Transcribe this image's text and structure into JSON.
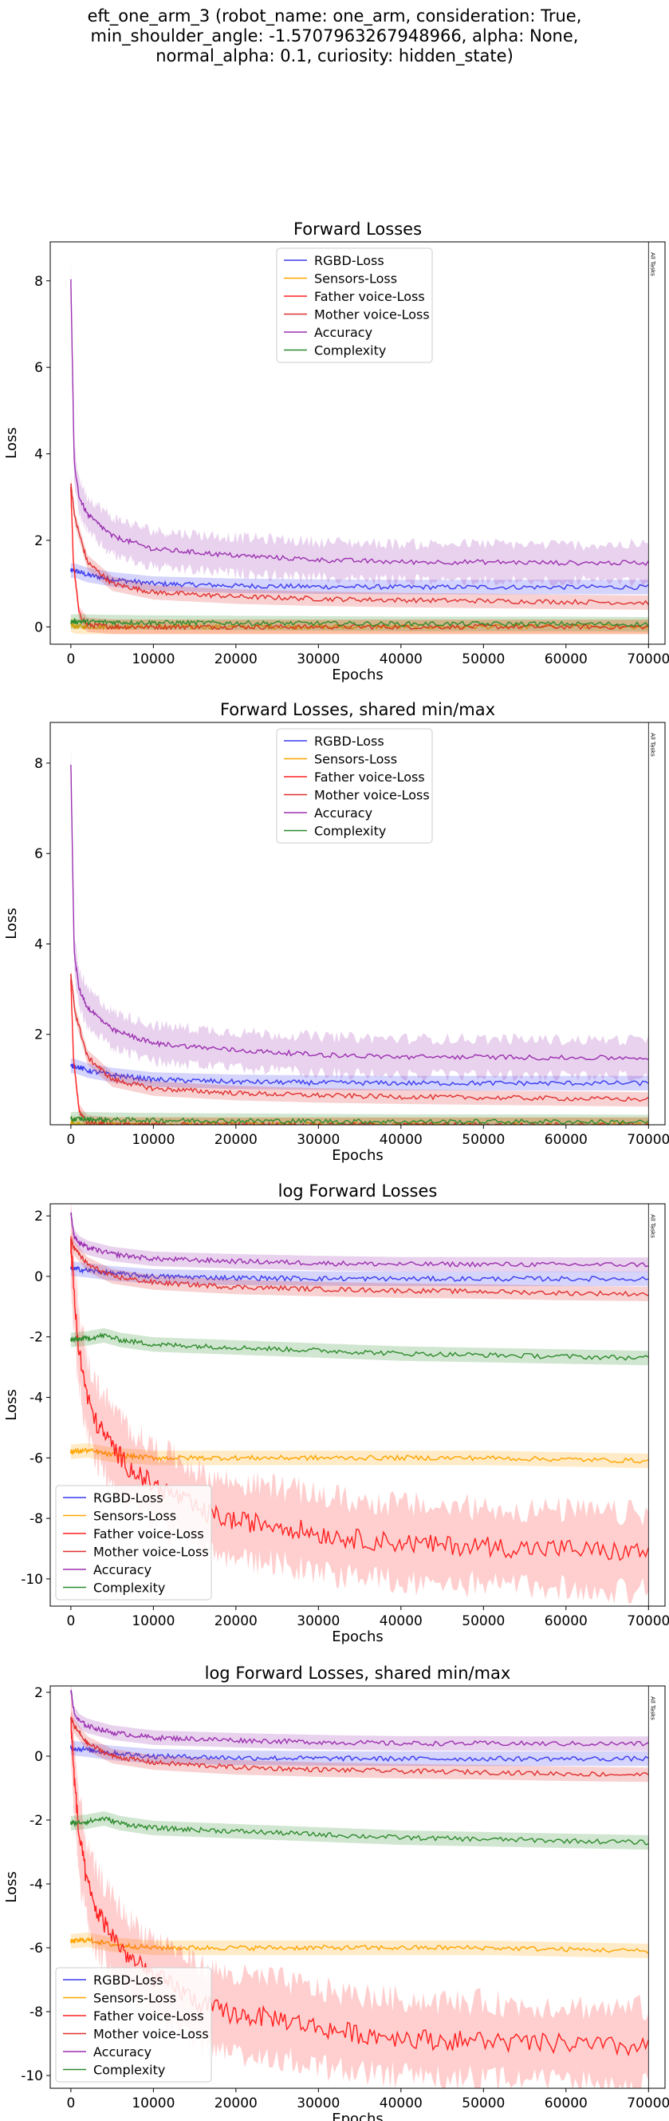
{
  "suptitle": {
    "lines": [
      "eft_one_arm_3 (robot_name: one_arm, consideration: True,",
      "min_shoulder_angle: -1.5707963267948966, alpha: None,",
      "normal_alpha: 0.1, curiosity: hidden_state)"
    ]
  },
  "colors": {
    "rgbd": "#3b3bf0",
    "sensors": "#ffa500",
    "father": "#ff2020",
    "mother": "#e03030",
    "accuracy": "#9b30b0",
    "complexity": "#2e8b2e"
  },
  "chart_data": [
    {
      "type": "line",
      "title": "Forward Losses",
      "xlabel": "Epochs",
      "ylabel": "Loss",
      "xlim": [
        -2500,
        72000
      ],
      "ylim": [
        -0.4,
        8.9
      ],
      "xticks": [
        0,
        10000,
        20000,
        30000,
        40000,
        50000,
        60000,
        70000
      ],
      "yticks": [
        0,
        2,
        4,
        6,
        8
      ],
      "annotation": "All Tasks",
      "annotation_x": 70000,
      "grid": false,
      "legend_placement": "upper-center",
      "series": [
        {
          "name": "RGBD-Loss",
          "color": "#3b3bf0",
          "x": [
            0,
            500,
            2000,
            5000,
            10000,
            20000,
            30000,
            40000,
            50000,
            60000,
            70000
          ],
          "values": [
            1.3,
            1.3,
            1.2,
            1.1,
            1.0,
            0.95,
            0.93,
            0.92,
            0.92,
            0.92,
            0.92
          ]
        },
        {
          "name": "Sensors-Loss",
          "color": "#ffa500",
          "x": [
            0,
            500,
            1000,
            2000,
            5000,
            10000,
            20000,
            30000,
            40000,
            50000,
            60000,
            70000
          ],
          "values": [
            0.05,
            0.01,
            0.005,
            0.003,
            0.003,
            0.003,
            0.003,
            0.003,
            0.003,
            0.003,
            0.003,
            0.003
          ]
        },
        {
          "name": "Father voice-Loss",
          "color": "#ff2020",
          "x": [
            0,
            300,
            1000,
            2000,
            5000,
            10000,
            20000,
            30000,
            40000,
            50000,
            60000,
            70000
          ],
          "values": [
            3.2,
            1.5,
            0.3,
            0.05,
            0.005,
            0.002,
            0.001,
            0.001,
            0.001,
            0.001,
            0.001,
            0.001
          ]
        },
        {
          "name": "Mother voice-Loss",
          "color": "#e03030",
          "x": [
            0,
            500,
            2000,
            5000,
            10000,
            20000,
            30000,
            40000,
            50000,
            60000,
            70000
          ],
          "values": [
            3.3,
            2.5,
            1.5,
            1.0,
            0.8,
            0.7,
            0.65,
            0.62,
            0.6,
            0.58,
            0.56
          ]
        },
        {
          "name": "Accuracy",
          "color": "#9b30b0",
          "x": [
            0,
            400,
            1000,
            2000,
            5000,
            10000,
            20000,
            30000,
            40000,
            50000,
            60000,
            70000
          ],
          "values": [
            8.0,
            3.8,
            3.0,
            2.6,
            2.1,
            1.8,
            1.65,
            1.55,
            1.5,
            1.5,
            1.48,
            1.48
          ]
        },
        {
          "name": "Complexity",
          "color": "#2e8b2e",
          "x": [
            0,
            1000,
            2000,
            5000,
            10000,
            20000,
            30000,
            40000,
            50000,
            60000,
            70000
          ],
          "values": [
            0.12,
            0.13,
            0.12,
            0.11,
            0.1,
            0.09,
            0.08,
            0.07,
            0.07,
            0.07,
            0.06
          ]
        }
      ]
    },
    {
      "type": "line",
      "title": "Forward Losses, shared min/max",
      "xlabel": "Epochs",
      "ylabel": "Loss",
      "xlim": [
        -2500,
        72000
      ],
      "ylim": [
        0.0,
        8.9
      ],
      "xticks": [
        0,
        10000,
        20000,
        30000,
        40000,
        50000,
        60000,
        70000
      ],
      "yticks": [
        2,
        4,
        6,
        8
      ],
      "annotation": "All Tasks",
      "annotation_x": 70000,
      "grid": false,
      "legend_placement": "upper-center",
      "series": [
        {
          "name": "RGBD-Loss",
          "color": "#3b3bf0",
          "x": [
            0,
            500,
            2000,
            5000,
            10000,
            20000,
            30000,
            40000,
            50000,
            60000,
            70000
          ],
          "values": [
            1.3,
            1.3,
            1.2,
            1.1,
            1.0,
            0.95,
            0.93,
            0.92,
            0.92,
            0.92,
            0.92
          ]
        },
        {
          "name": "Sensors-Loss",
          "color": "#ffa500",
          "x": [
            0,
            500,
            1000,
            2000,
            5000,
            10000,
            20000,
            30000,
            40000,
            50000,
            60000,
            70000
          ],
          "values": [
            0.05,
            0.01,
            0.005,
            0.003,
            0.003,
            0.003,
            0.003,
            0.003,
            0.003,
            0.003,
            0.003,
            0.003
          ]
        },
        {
          "name": "Father voice-Loss",
          "color": "#ff2020",
          "x": [
            0,
            300,
            1000,
            2000,
            5000,
            10000,
            20000,
            30000,
            40000,
            50000,
            60000,
            70000
          ],
          "values": [
            3.2,
            1.5,
            0.3,
            0.05,
            0.005,
            0.002,
            0.001,
            0.001,
            0.001,
            0.001,
            0.001,
            0.001
          ]
        },
        {
          "name": "Mother voice-Loss",
          "color": "#e03030",
          "x": [
            0,
            500,
            2000,
            5000,
            10000,
            20000,
            30000,
            40000,
            50000,
            60000,
            70000
          ],
          "values": [
            3.3,
            2.5,
            1.5,
            1.0,
            0.8,
            0.7,
            0.65,
            0.62,
            0.6,
            0.58,
            0.56
          ]
        },
        {
          "name": "Accuracy",
          "color": "#9b30b0",
          "x": [
            0,
            400,
            1000,
            2000,
            5000,
            10000,
            20000,
            30000,
            40000,
            50000,
            60000,
            70000
          ],
          "values": [
            8.0,
            3.8,
            3.0,
            2.6,
            2.1,
            1.8,
            1.65,
            1.55,
            1.5,
            1.5,
            1.48,
            1.48
          ]
        },
        {
          "name": "Complexity",
          "color": "#2e8b2e",
          "x": [
            0,
            1000,
            2000,
            5000,
            10000,
            20000,
            30000,
            40000,
            50000,
            60000,
            70000
          ],
          "values": [
            0.12,
            0.13,
            0.12,
            0.11,
            0.1,
            0.09,
            0.08,
            0.07,
            0.07,
            0.07,
            0.06
          ]
        }
      ]
    },
    {
      "type": "line",
      "title": "log Forward Losses",
      "xlabel": "Epochs",
      "ylabel": "Loss",
      "xlim": [
        -2500,
        72000
      ],
      "ylim": [
        -10.9,
        2.4
      ],
      "xticks": [
        0,
        10000,
        20000,
        30000,
        40000,
        50000,
        60000,
        70000
      ],
      "yticks": [
        -10,
        -8,
        -6,
        -4,
        -2,
        0,
        2
      ],
      "annotation": "All Tasks",
      "annotation_x": 70000,
      "grid": false,
      "legend_placement": "lower-left",
      "series": [
        {
          "name": "RGBD-Loss",
          "color": "#3b3bf0",
          "x": [
            0,
            2000,
            5000,
            10000,
            20000,
            30000,
            40000,
            50000,
            60000,
            70000
          ],
          "values": [
            0.26,
            0.2,
            0.1,
            0.0,
            -0.05,
            -0.07,
            -0.08,
            -0.08,
            -0.08,
            -0.08
          ]
        },
        {
          "name": "Sensors-Loss",
          "color": "#ffa500",
          "x": [
            0,
            2000,
            5000,
            10000,
            20000,
            30000,
            40000,
            50000,
            60000,
            70000
          ],
          "values": [
            -5.8,
            -5.75,
            -5.9,
            -6.0,
            -6.0,
            -6.0,
            -6.0,
            -6.0,
            -6.05,
            -6.1
          ]
        },
        {
          "name": "Father voice-Loss",
          "color": "#ff2020",
          "x": [
            0,
            500,
            1000,
            2000,
            3000,
            5000,
            7000,
            10000,
            13000,
            16000,
            20000,
            25000,
            30000,
            35000,
            40000,
            45000,
            50000,
            55000,
            60000,
            65000,
            70000
          ],
          "values": [
            1.1,
            -1.0,
            -2.5,
            -4.0,
            -4.8,
            -5.6,
            -6.3,
            -6.9,
            -7.3,
            -7.8,
            -8.1,
            -8.2,
            -8.5,
            -8.7,
            -8.8,
            -8.9,
            -8.9,
            -9.0,
            -9.0,
            -9.1,
            -9.1
          ]
        },
        {
          "name": "Mother voice-Loss",
          "color": "#e03030",
          "x": [
            0,
            500,
            2000,
            5000,
            10000,
            20000,
            30000,
            40000,
            50000,
            60000,
            70000
          ],
          "values": [
            1.2,
            0.9,
            0.4,
            0.0,
            -0.2,
            -0.35,
            -0.42,
            -0.47,
            -0.5,
            -0.55,
            -0.58
          ]
        },
        {
          "name": "Accuracy",
          "color": "#9b30b0",
          "x": [
            0,
            400,
            1000,
            2000,
            5000,
            10000,
            20000,
            30000,
            40000,
            50000,
            60000,
            70000
          ],
          "values": [
            2.08,
            1.33,
            1.1,
            0.95,
            0.74,
            0.58,
            0.5,
            0.44,
            0.4,
            0.4,
            0.39,
            0.39
          ]
        },
        {
          "name": "Complexity",
          "color": "#2e8b2e",
          "x": [
            0,
            2000,
            4000,
            6000,
            10000,
            20000,
            30000,
            40000,
            50000,
            60000,
            70000
          ],
          "values": [
            -2.1,
            -2.05,
            -1.95,
            -2.1,
            -2.25,
            -2.35,
            -2.45,
            -2.55,
            -2.6,
            -2.65,
            -2.7
          ]
        }
      ]
    },
    {
      "type": "line",
      "title": "log Forward Losses, shared min/max",
      "xlabel": "Epochs",
      "ylabel": "Loss",
      "xlim": [
        -2500,
        72000
      ],
      "ylim": [
        -10.4,
        2.2
      ],
      "xticks": [
        0,
        10000,
        20000,
        30000,
        40000,
        50000,
        60000,
        70000
      ],
      "yticks": [
        -10,
        -8,
        -6,
        -4,
        -2,
        0,
        2
      ],
      "annotation": "All Tasks",
      "annotation_x": 70000,
      "grid": false,
      "legend_placement": "lower-left",
      "series": [
        {
          "name": "RGBD-Loss",
          "color": "#3b3bf0",
          "x": [
            0,
            2000,
            5000,
            10000,
            20000,
            30000,
            40000,
            50000,
            60000,
            70000
          ],
          "values": [
            0.26,
            0.2,
            0.1,
            0.0,
            -0.05,
            -0.07,
            -0.08,
            -0.08,
            -0.08,
            -0.08
          ]
        },
        {
          "name": "Sensors-Loss",
          "color": "#ffa500",
          "x": [
            0,
            2000,
            5000,
            10000,
            20000,
            30000,
            40000,
            50000,
            60000,
            70000
          ],
          "values": [
            -5.8,
            -5.75,
            -5.9,
            -6.0,
            -6.0,
            -6.0,
            -6.0,
            -6.0,
            -6.05,
            -6.1
          ]
        },
        {
          "name": "Father voice-Loss",
          "color": "#ff2020",
          "x": [
            0,
            500,
            1000,
            2000,
            3000,
            5000,
            7000,
            10000,
            13000,
            16000,
            20000,
            25000,
            30000,
            35000,
            40000,
            45000,
            50000,
            55000,
            60000,
            65000,
            70000
          ],
          "values": [
            1.1,
            -1.0,
            -2.5,
            -4.0,
            -4.8,
            -5.6,
            -6.3,
            -6.9,
            -7.3,
            -7.8,
            -8.1,
            -8.2,
            -8.5,
            -8.7,
            -8.8,
            -8.9,
            -8.9,
            -9.0,
            -9.0,
            -9.1,
            -9.1
          ]
        },
        {
          "name": "Mother voice-Loss",
          "color": "#e03030",
          "x": [
            0,
            500,
            2000,
            5000,
            10000,
            20000,
            30000,
            40000,
            50000,
            60000,
            70000
          ],
          "values": [
            1.2,
            0.9,
            0.4,
            0.0,
            -0.2,
            -0.35,
            -0.42,
            -0.47,
            -0.5,
            -0.55,
            -0.58
          ]
        },
        {
          "name": "Accuracy",
          "color": "#9b30b0",
          "x": [
            0,
            400,
            1000,
            2000,
            5000,
            10000,
            20000,
            30000,
            40000,
            50000,
            60000,
            70000
          ],
          "values": [
            2.08,
            1.33,
            1.1,
            0.95,
            0.74,
            0.58,
            0.5,
            0.44,
            0.4,
            0.4,
            0.39,
            0.39
          ]
        },
        {
          "name": "Complexity",
          "color": "#2e8b2e",
          "x": [
            0,
            2000,
            4000,
            6000,
            10000,
            20000,
            30000,
            40000,
            50000,
            60000,
            70000
          ],
          "values": [
            -2.1,
            -2.05,
            -1.95,
            -2.1,
            -2.25,
            -2.35,
            -2.45,
            -2.55,
            -2.6,
            -2.65,
            -2.7
          ]
        }
      ]
    }
  ]
}
